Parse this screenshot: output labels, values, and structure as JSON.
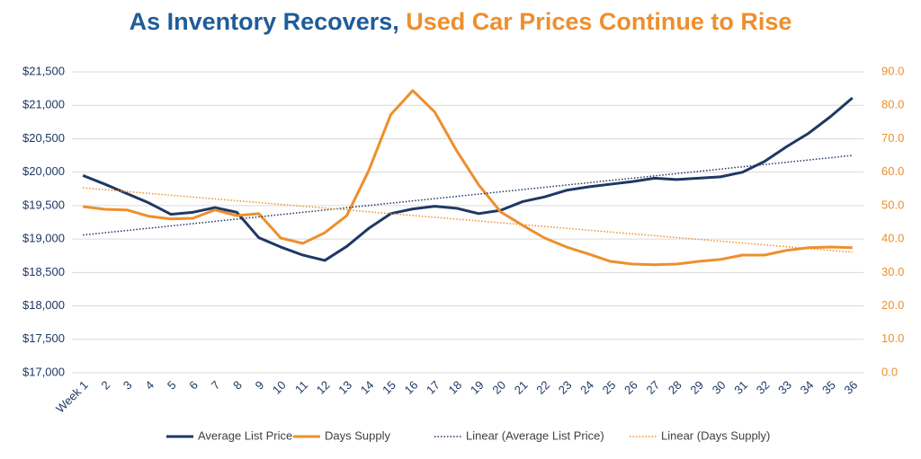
{
  "chart_data": {
    "type": "line",
    "title": [
      "As Inventory Recovers,",
      "Used Car Prices Continue to Rise"
    ],
    "title_colors": [
      "#1f5c99",
      "#ee8f2c"
    ],
    "categories": [
      "Week 1",
      "2",
      "3",
      "4",
      "5",
      "6",
      "7",
      "8",
      "9",
      "10",
      "11",
      "12",
      "13",
      "14",
      "15",
      "16",
      "17",
      "18",
      "19",
      "20",
      "21",
      "22",
      "23",
      "24",
      "25",
      "26",
      "27",
      "28",
      "29",
      "30",
      "31",
      "32",
      "33",
      "34",
      "35",
      "36"
    ],
    "ylim": [
      17000,
      21500
    ],
    "yticks": [
      {
        "value": 17000,
        "label": "$17,000"
      },
      {
        "value": 17500,
        "label": "$17,500"
      },
      {
        "value": 18000,
        "label": "$18,000"
      },
      {
        "value": 18500,
        "label": "$18,500"
      },
      {
        "value": 19000,
        "label": "$19,000"
      },
      {
        "value": 19500,
        "label": "$19,500"
      },
      {
        "value": 20000,
        "label": "$20,000"
      },
      {
        "value": 20500,
        "label": "$20,500"
      },
      {
        "value": 21000,
        "label": "$21,000"
      },
      {
        "value": 21500,
        "label": "$21,500"
      }
    ],
    "y2lim": [
      0,
      90
    ],
    "y2ticks": [
      {
        "value": 0,
        "label": "0.0"
      },
      {
        "value": 10,
        "label": "10.0"
      },
      {
        "value": 20,
        "label": "20.0"
      },
      {
        "value": 30,
        "label": "30.0"
      },
      {
        "value": 40,
        "label": "40.0"
      },
      {
        "value": 50,
        "label": "50.0"
      },
      {
        "value": 60,
        "label": "60.0"
      },
      {
        "value": 70,
        "label": "70.0"
      },
      {
        "value": 80,
        "label": "80.0"
      },
      {
        "value": 90,
        "label": "90.0"
      }
    ],
    "grid": true,
    "legend": "bottom",
    "series": [
      {
        "name": "Average List Price",
        "color": "#1f3864",
        "style": "solid",
        "values": [
          19950,
          19820,
          19680,
          19540,
          19370,
          19400,
          19470,
          19400,
          19020,
          18880,
          18760,
          18680,
          18890,
          19160,
          19380,
          19450,
          19490,
          19460,
          19380,
          19430,
          19560,
          19630,
          19730,
          19780,
          19820,
          19860,
          19910,
          19890,
          19910,
          19930,
          20000,
          20160,
          20380,
          20580,
          20830,
          21110
        ]
      },
      {
        "name": "Days Supply",
        "color": "#ee8f2c",
        "style": "solid",
        "axis": "y2",
        "values": [
          49.7,
          48.9,
          48.7,
          46.8,
          46.0,
          46.2,
          48.7,
          47.0,
          47.6,
          40.3,
          38.7,
          41.9,
          47.0,
          60.5,
          77.2,
          84.4,
          78.0,
          66.4,
          56.2,
          48.1,
          44.1,
          40.3,
          37.6,
          35.5,
          33.3,
          32.5,
          32.3,
          32.5,
          33.3,
          33.9,
          35.2,
          35.2,
          36.6,
          37.4,
          37.6,
          37.4
        ]
      },
      {
        "name": "Linear (Average List Price)",
        "color": "#1f3864",
        "style": "dotted",
        "values": [
          19060,
          19094,
          19128,
          19162,
          19196,
          19230,
          19264,
          19298,
          19332,
          19366,
          19400,
          19434,
          19468,
          19502,
          19536,
          19570,
          19604,
          19638,
          19672,
          19706,
          19740,
          19774,
          19808,
          19842,
          19876,
          19910,
          19944,
          19978,
          20012,
          20046,
          20080,
          20114,
          20148,
          20182,
          20216,
          20250
        ]
      },
      {
        "name": "Linear (Days Supply)",
        "color": "#ee8f2c",
        "style": "dotted",
        "axis": "y2",
        "values": [
          55.3,
          54.75,
          54.2,
          53.65,
          53.1,
          52.55,
          52,
          51.45,
          50.9,
          50.35,
          49.8,
          49.25,
          48.7,
          48.15,
          47.6,
          47.05,
          46.5,
          45.95,
          45.4,
          44.85,
          44.3,
          43.75,
          43.2,
          42.65,
          42.1,
          41.55,
          41,
          40.45,
          39.9,
          39.35,
          38.8,
          38.25,
          37.7,
          37.15,
          36.6,
          36.05
        ]
      }
    ]
  }
}
